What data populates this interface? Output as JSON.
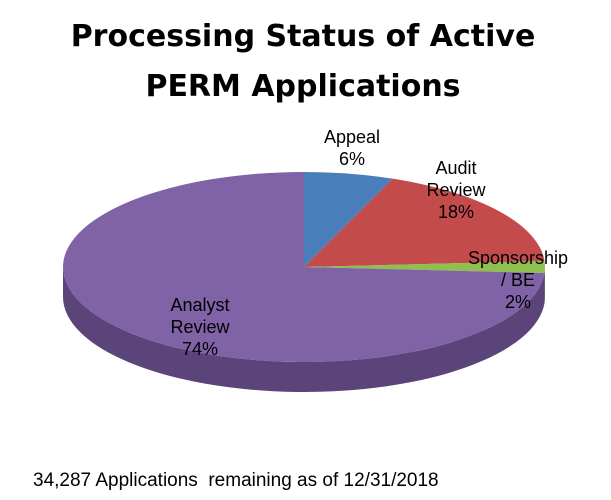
{
  "chart_data": {
    "type": "pie",
    "title": "Processing Status of Active PERM Applications",
    "title_lines": [
      "Processing Status of Active",
      "PERM Applications"
    ],
    "footnote": "34,287 Applications  remaining as of 12/31/2018",
    "slices": [
      {
        "name": "Appeal",
        "label_lines": [
          "Appeal",
          "6%"
        ],
        "value": 6,
        "color": "#4a7ebb",
        "side_color": "#30588c"
      },
      {
        "name": "Audit Review",
        "label_lines": [
          "Audit",
          "Review",
          "18%"
        ],
        "value": 18,
        "color": "#c44b4b",
        "side_color": "#8f2f2f"
      },
      {
        "name": "Sponsorship / BE",
        "label_lines": [
          "Sponsorship",
          "/ BE",
          "2%"
        ],
        "value": 2,
        "color": "#8fbf4e",
        "side_color": "#62892e"
      },
      {
        "name": "Analyst Review",
        "label_lines": [
          "Analyst",
          "Review",
          "74%"
        ],
        "value": 74,
        "color": "#8062a6",
        "side_color": "#5b447a"
      }
    ],
    "style": "3d-pie",
    "legend": "none"
  }
}
